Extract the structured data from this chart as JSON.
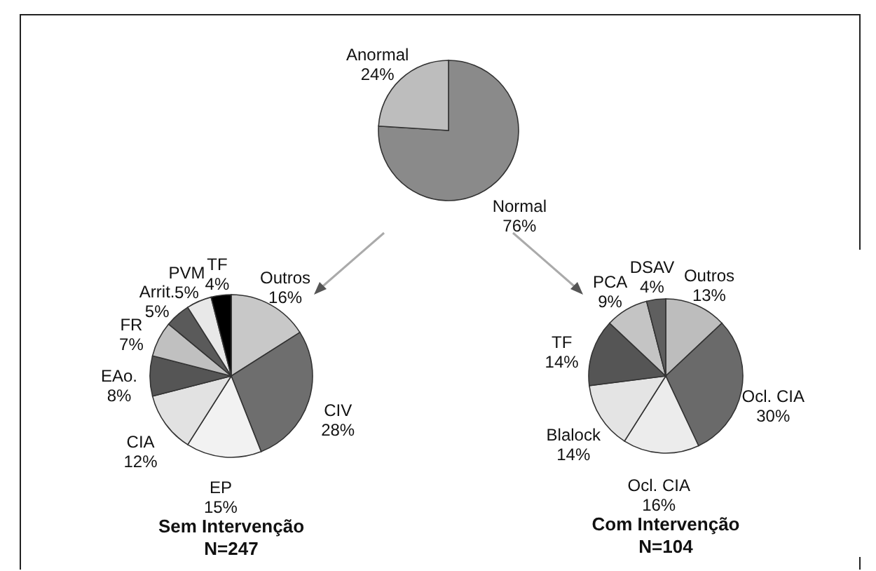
{
  "chart_data": [
    {
      "type": "pie",
      "categories": [
        "Normal",
        "Anormal"
      ],
      "values": [
        76,
        24
      ],
      "colors": [
        "#8a8a8a",
        "#bdbdbd"
      ],
      "value_labels": [
        "76%",
        "24%"
      ]
    },
    {
      "type": "pie",
      "title": "Sem Intervenção",
      "subtitle": "N=247",
      "categories": [
        "Outros",
        "CIV",
        "EP",
        "CIA",
        "EAo.",
        "FR",
        "Arrit.",
        "PVM",
        "TF"
      ],
      "values": [
        16,
        28,
        15,
        12,
        8,
        7,
        5,
        5,
        4
      ],
      "colors": [
        "#c8c8c8",
        "#6e6e6e",
        "#f2f2f2",
        "#e2e2e2",
        "#555555",
        "#c0c0c0",
        "#5a5a5a",
        "#e8e8e8",
        "#000000"
      ],
      "value_labels": [
        "16%",
        "28%",
        "15%",
        "12%",
        "8%",
        "7%",
        "5%",
        "5%",
        "4%"
      ]
    },
    {
      "type": "pie",
      "title": "Com Intervenção",
      "subtitle": "N=104",
      "categories": [
        "Outros",
        "Ocl. CIA",
        "Ocl. CIA",
        "Blalock",
        "TF",
        "PCA",
        "DSAV"
      ],
      "values": [
        13,
        30,
        16,
        14,
        14,
        9,
        4
      ],
      "colors": [
        "#bdbdbd",
        "#6a6a6a",
        "#ececec",
        "#e4e4e4",
        "#555555",
        "#c4c4c4",
        "#5f5f5f"
      ],
      "value_labels": [
        "13%",
        "30%",
        "16%",
        "14%",
        "14%",
        "9%",
        "4%"
      ]
    }
  ]
}
